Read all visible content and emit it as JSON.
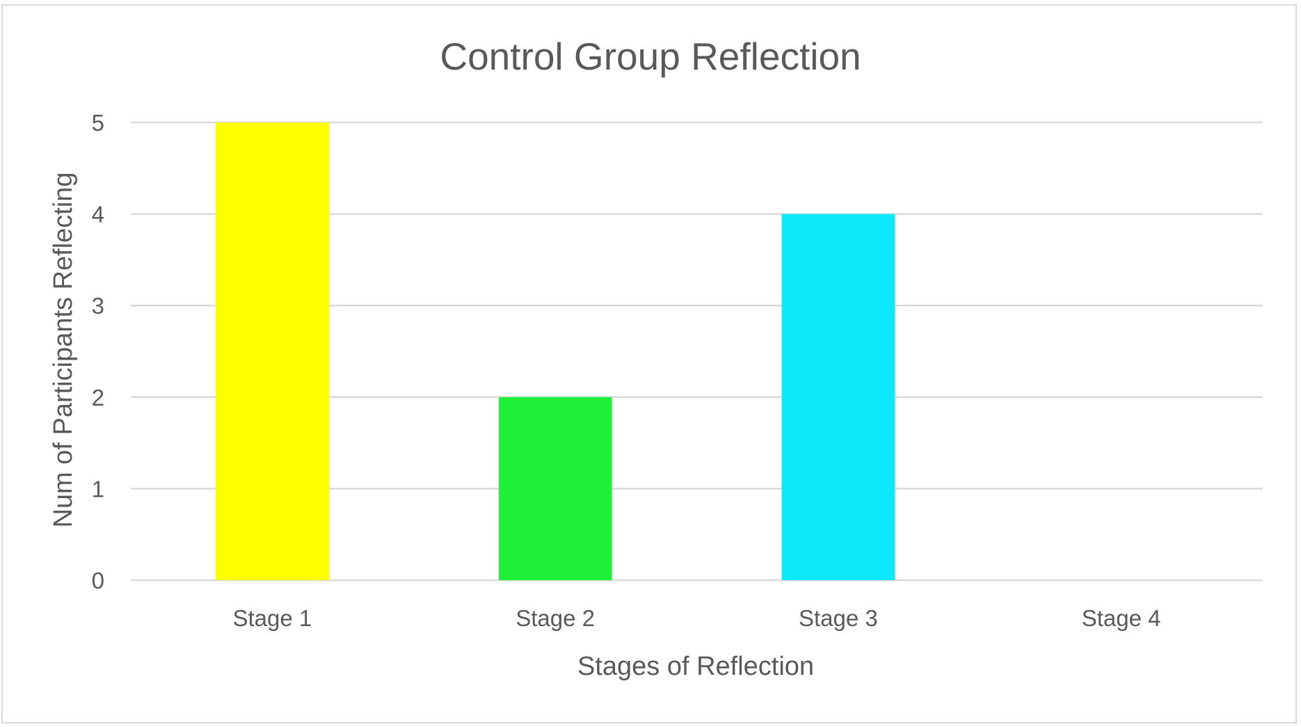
{
  "chart_data": {
    "type": "bar",
    "title": "Control Group Reflection",
    "xlabel": "Stages of Reflection",
    "ylabel": "Num of Participants Reflecting",
    "categories": [
      "Stage 1",
      "Stage 2",
      "Stage 3",
      "Stage 4"
    ],
    "values": [
      5,
      2,
      4,
      0
    ],
    "colors": [
      "#ffff00",
      "#1df036",
      "#0de9fa",
      "#a5a5a5"
    ],
    "ylim": [
      0,
      5
    ],
    "yticks": [
      0,
      1,
      2,
      3,
      4,
      5
    ],
    "grid": true,
    "legend": "none"
  }
}
